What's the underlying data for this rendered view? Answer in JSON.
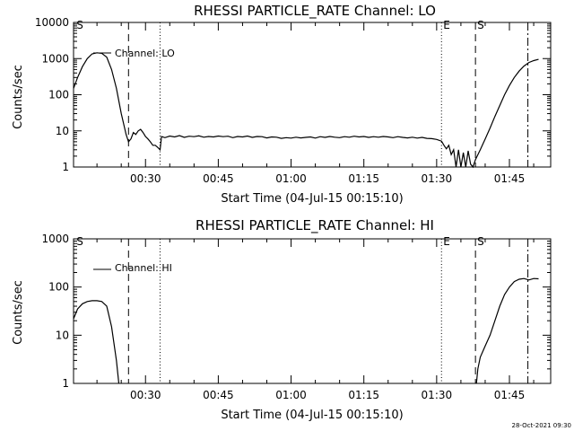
{
  "footer_timestamp": "28-Oct-2021 09:30",
  "chart_data": [
    {
      "type": "line",
      "title": "RHESSI PARTICLE_RATE Channel: LO",
      "xlabel": "Start Time (04-Jul-15 00:15:10)",
      "ylabel": "Counts/sec",
      "yscale": "log",
      "ylim": [
        1,
        10000
      ],
      "xlim_minutes": [
        15.17,
        113.5
      ],
      "x_ticks": [
        {
          "t": 30,
          "label": "00:30"
        },
        {
          "t": 45,
          "label": "00:45"
        },
        {
          "t": 60,
          "label": "01:00"
        },
        {
          "t": 75,
          "label": "01:15"
        },
        {
          "t": 90,
          "label": "01:30"
        },
        {
          "t": 105,
          "label": "01:45"
        }
      ],
      "y_ticks": [
        {
          "v": 1,
          "label": "1"
        },
        {
          "v": 10,
          "label": "10"
        },
        {
          "v": 100,
          "label": "100"
        },
        {
          "v": 1000,
          "label": "1000"
        },
        {
          "v": 10000,
          "label": "10000"
        }
      ],
      "legend": {
        "label": "Channel: LO",
        "placement": "top-left"
      },
      "markers": [
        {
          "t": 15.4,
          "label": "S",
          "style": "none"
        },
        {
          "t": 26.5,
          "label": "",
          "style": "dashed"
        },
        {
          "t": 33.0,
          "label": "",
          "style": "dotted"
        },
        {
          "t": 91.0,
          "label": "E",
          "style": "dotted"
        },
        {
          "t": 98.0,
          "label": "S",
          "style": "dashed"
        },
        {
          "t": 108.8,
          "label": "",
          "style": "dashdot"
        }
      ],
      "series": [
        {
          "points": [
            [
              15.17,
              150
            ],
            [
              16.0,
              300
            ],
            [
              17.0,
              600
            ],
            [
              18.0,
              1000
            ],
            [
              19.0,
              1350
            ],
            [
              20.0,
              1450
            ],
            [
              21.0,
              1400
            ],
            [
              22.0,
              1100
            ],
            [
              23.0,
              500
            ],
            [
              24.0,
              150
            ],
            [
              25.0,
              30
            ],
            [
              26.0,
              8
            ],
            [
              26.5,
              5
            ],
            [
              27.0,
              6
            ],
            [
              27.5,
              9
            ],
            [
              28.0,
              8
            ],
            [
              28.5,
              10
            ],
            [
              29.0,
              11
            ],
            [
              29.5,
              9
            ],
            [
              30.0,
              7
            ],
            [
              30.5,
              6
            ],
            [
              31.0,
              5
            ],
            [
              31.5,
              4
            ],
            [
              32.0,
              4
            ],
            [
              32.5,
              3.5
            ],
            [
              33.0,
              3
            ],
            [
              33.3,
              7
            ],
            [
              34.0,
              6.5
            ],
            [
              35.0,
              7.2
            ],
            [
              36.0,
              6.8
            ],
            [
              37.0,
              7.4
            ],
            [
              38.0,
              6.6
            ],
            [
              39.0,
              7.1
            ],
            [
              40.0,
              6.9
            ],
            [
              41.0,
              7.3
            ],
            [
              42.0,
              6.7
            ],
            [
              43.0,
              7.0
            ],
            [
              44.0,
              6.8
            ],
            [
              45.0,
              7.2
            ],
            [
              46.0,
              6.9
            ],
            [
              47.0,
              7.1
            ],
            [
              48.0,
              6.5
            ],
            [
              49.0,
              7.0
            ],
            [
              50.0,
              6.8
            ],
            [
              51.0,
              7.2
            ],
            [
              52.0,
              6.6
            ],
            [
              53.0,
              7.0
            ],
            [
              54.0,
              6.9
            ],
            [
              55.0,
              6.4
            ],
            [
              56.0,
              6.8
            ],
            [
              57.0,
              6.7
            ],
            [
              58.0,
              6.2
            ],
            [
              59.0,
              6.5
            ],
            [
              60.0,
              6.3
            ],
            [
              61.0,
              6.7
            ],
            [
              62.0,
              6.4
            ],
            [
              63.0,
              6.6
            ],
            [
              64.0,
              6.8
            ],
            [
              65.0,
              6.3
            ],
            [
              66.0,
              6.9
            ],
            [
              67.0,
              6.6
            ],
            [
              68.0,
              7.0
            ],
            [
              69.0,
              6.7
            ],
            [
              70.0,
              6.5
            ],
            [
              71.0,
              6.9
            ],
            [
              72.0,
              6.7
            ],
            [
              73.0,
              7.1
            ],
            [
              74.0,
              6.8
            ],
            [
              75.0,
              7.0
            ],
            [
              76.0,
              6.6
            ],
            [
              77.0,
              6.9
            ],
            [
              78.0,
              6.7
            ],
            [
              79.0,
              7.0
            ],
            [
              80.0,
              6.8
            ],
            [
              81.0,
              6.5
            ],
            [
              82.0,
              6.9
            ],
            [
              83.0,
              6.6
            ],
            [
              84.0,
              6.4
            ],
            [
              85.0,
              6.7
            ],
            [
              86.0,
              6.3
            ],
            [
              87.0,
              6.6
            ],
            [
              88.0,
              6.2
            ],
            [
              89.0,
              6.1
            ],
            [
              90.0,
              5.8
            ],
            [
              91.0,
              5.2
            ],
            [
              91.5,
              4.0
            ],
            [
              92.0,
              3.2
            ],
            [
              92.5,
              4.0
            ],
            [
              93.0,
              2.2
            ],
            [
              93.5,
              3.0
            ],
            [
              94.0,
              1.0
            ],
            [
              94.5,
              3.0
            ],
            [
              95.0,
              1.0
            ],
            [
              95.5,
              2.5
            ],
            [
              96.0,
              1.0
            ],
            [
              96.5,
              2.8
            ],
            [
              97.0,
              1.2
            ],
            [
              97.5,
              1.0
            ],
            [
              98.0,
              1.6
            ],
            [
              99.0,
              3.0
            ],
            [
              100.0,
              6.0
            ],
            [
              101.0,
              12
            ],
            [
              102.0,
              25
            ],
            [
              103.0,
              50
            ],
            [
              104.0,
              100
            ],
            [
              105.0,
              180
            ],
            [
              106.0,
              300
            ],
            [
              107.0,
              450
            ],
            [
              108.0,
              620
            ],
            [
              109.0,
              780
            ],
            [
              110.0,
              880
            ],
            [
              111.0,
              950
            ]
          ]
        }
      ]
    },
    {
      "type": "line",
      "title": "RHESSI PARTICLE_RATE Channel: HI",
      "xlabel": "Start Time (04-Jul-15 00:15:10)",
      "ylabel": "Counts/sec",
      "yscale": "log",
      "ylim": [
        1,
        1000
      ],
      "xlim_minutes": [
        15.17,
        113.5
      ],
      "x_ticks": [
        {
          "t": 30,
          "label": "00:30"
        },
        {
          "t": 45,
          "label": "00:45"
        },
        {
          "t": 60,
          "label": "01:00"
        },
        {
          "t": 75,
          "label": "01:15"
        },
        {
          "t": 90,
          "label": "01:30"
        },
        {
          "t": 105,
          "label": "01:45"
        }
      ],
      "y_ticks": [
        {
          "v": 1,
          "label": "1"
        },
        {
          "v": 10,
          "label": "10"
        },
        {
          "v": 100,
          "label": "100"
        },
        {
          "v": 1000,
          "label": "1000"
        }
      ],
      "legend": {
        "label": "Channel: HI",
        "placement": "top-left"
      },
      "markers": [
        {
          "t": 15.4,
          "label": "S",
          "style": "none"
        },
        {
          "t": 26.5,
          "label": "",
          "style": "dashed"
        },
        {
          "t": 33.0,
          "label": "",
          "style": "dotted"
        },
        {
          "t": 91.0,
          "label": "E",
          "style": "dotted"
        },
        {
          "t": 98.0,
          "label": "S",
          "style": "dashed"
        },
        {
          "t": 108.8,
          "label": "",
          "style": "dashdot"
        }
      ],
      "series": [
        {
          "points": [
            [
              15.17,
              22
            ],
            [
              16.0,
              35
            ],
            [
              17.0,
              45
            ],
            [
              18.0,
              50
            ],
            [
              19.0,
              52
            ],
            [
              20.0,
              52
            ],
            [
              21.0,
              50
            ],
            [
              22.0,
              40
            ],
            [
              23.0,
              15
            ],
            [
              24.0,
              3
            ],
            [
              24.5,
              1.0
            ]
          ]
        },
        {
          "points": [
            [
              98.2,
              1.0
            ],
            [
              98.5,
              2.0
            ],
            [
              99.0,
              3.5
            ],
            [
              100.0,
              6
            ],
            [
              101.0,
              10
            ],
            [
              102.0,
              20
            ],
            [
              103.0,
              40
            ],
            [
              104.0,
              70
            ],
            [
              105.0,
              100
            ],
            [
              106.0,
              130
            ],
            [
              107.0,
              145
            ],
            [
              108.0,
              150
            ],
            [
              109.0,
              140
            ],
            [
              110.0,
              150
            ],
            [
              111.0,
              148
            ]
          ]
        }
      ]
    }
  ]
}
